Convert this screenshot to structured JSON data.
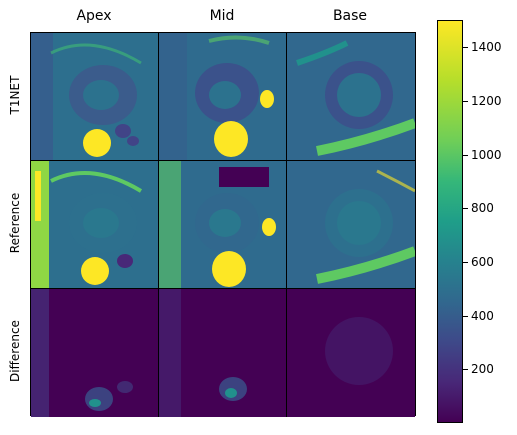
{
  "columns": [
    "Apex",
    "Mid",
    "Base"
  ],
  "rows": [
    "T1NET",
    "Reference",
    "Difference"
  ],
  "colorbar": {
    "ticks": [
      "1400",
      "1200",
      "1000",
      "800",
      "600",
      "400",
      "200"
    ],
    "range": [
      0,
      1500
    ],
    "colormap": "viridis"
  },
  "colors": {
    "dark": "#440154",
    "navy": "#3b528b",
    "teal": "#21918c",
    "green": "#5ec962",
    "yellow": "#fde725"
  }
}
